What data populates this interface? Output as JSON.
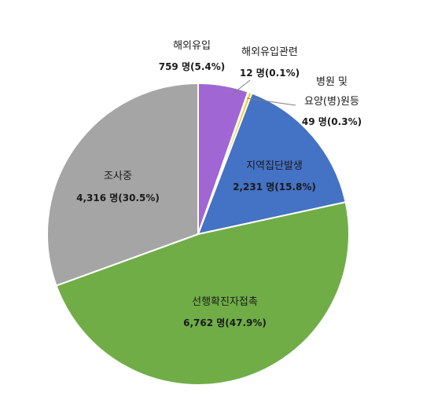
{
  "chart_data": {
    "type": "pie",
    "title": "",
    "slices": [
      {
        "label": "해외유입",
        "count_text": "759 명(5.4%)",
        "value": 759,
        "percent": 5.4,
        "color": "#a066d3"
      },
      {
        "label": "해외유입관련",
        "count_text": "12 명(0.1%)",
        "value": 12,
        "percent": 0.1,
        "color": "#f4b183"
      },
      {
        "label_line1": "병원 및",
        "label_line2": "요양(병)원등",
        "count_text": "49 명(0.3%)",
        "value": 49,
        "percent": 0.3,
        "color": "#ffc000"
      },
      {
        "label": "지역집단발생",
        "count_text": "2,231 명(15.8%)",
        "value": 2231,
        "percent": 15.8,
        "color": "#4472c4"
      },
      {
        "label": "선행확진자접촉",
        "count_text": "6,762 명(47.9%)",
        "value": 6762,
        "percent": 47.9,
        "color": "#70ad47"
      },
      {
        "label": "조사중",
        "count_text": "4,316 명(30.5%)",
        "value": 4316,
        "percent": 30.5,
        "color": "#a5a5a5"
      }
    ],
    "start": "12 o'clock",
    "direction": "clockwise",
    "legend": "none",
    "data_labels": "name and count with percent"
  }
}
